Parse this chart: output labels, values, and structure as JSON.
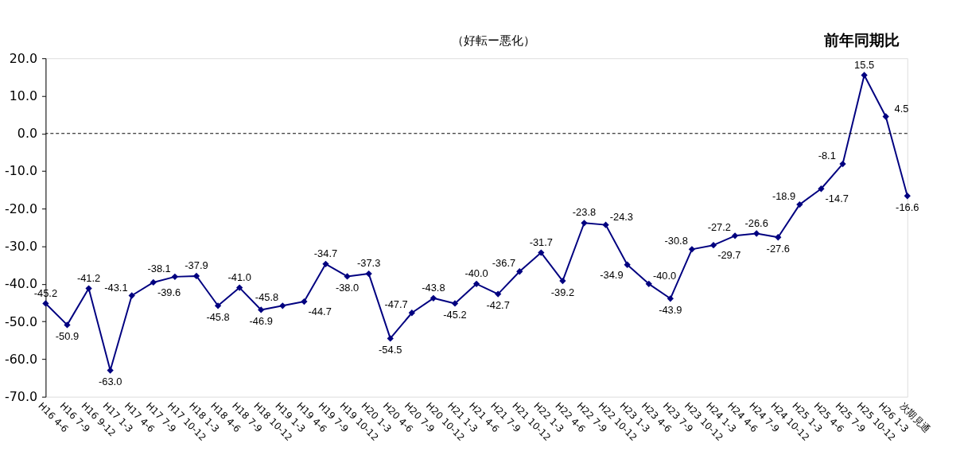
{
  "chart_data": {
    "type": "line",
    "title": "前年同期比",
    "subtitle": "（好転ー悪化）",
    "categories": [
      "H16 4-6",
      "H16 7-9",
      "H16 9-12",
      "H17 1-3",
      "H17 4-6",
      "H17 7-9",
      "H17 10-12",
      "H18 1-3",
      "H18 4-6",
      "H18 7-9",
      "H18 10-12",
      "H19 1-3",
      "H19 4-6",
      "H19 7-9",
      "H19 10-12",
      "H20 1-3",
      "H20 4-6",
      "H20 7-9",
      "H20 10-12",
      "H21 1-3",
      "H21 4-6",
      "H21 7-9",
      "H21 10-12",
      "H22 1-3",
      "H22 4-6",
      "H22 7-9",
      "H22 10-12",
      "H23 1-3",
      "H23 4-6",
      "H23 7-9",
      "H23 10-12",
      "H24 1-3",
      "H24 4-6",
      "H24 7-9",
      "H24 10-12",
      "H25 1-3",
      "H25 4-6",
      "H25 7-9",
      "H25 10-12",
      "H26 1-3",
      "次期見通"
    ],
    "series": [
      {
        "color": "#000080",
        "values": [
          -45.2,
          -50.9,
          -41.2,
          -63.0,
          -43.1,
          -39.6,
          -38.1,
          -37.9,
          -45.8,
          -41.0,
          -46.9,
          -45.8,
          -44.7,
          -34.7,
          -38.0,
          -37.3,
          -54.5,
          -47.7,
          -43.8,
          -45.2,
          -40.0,
          -42.7,
          -36.7,
          -31.7,
          -39.2,
          -23.8,
          -24.3,
          -34.9,
          -40.0,
          -43.9,
          -30.8,
          -29.7,
          -27.2,
          -26.6,
          -27.6,
          -18.9,
          -14.7,
          -8.1,
          15.5,
          4.5,
          -16.6
        ],
        "value_labels": [
          "-45.2",
          "-50.9",
          "-41.2",
          "-63.0",
          "-43.1",
          "-39.6",
          "-38.1",
          "-37.9",
          "-45.8",
          "-41.0",
          "-46.9",
          "-45.8",
          "-44.7",
          "-34.7",
          "-38.0",
          "-37.3",
          "-54.5",
          "-47.7",
          "-43.8",
          "-45.2",
          "-40.0",
          "-42.7",
          "-36.7",
          "-31.7",
          "-39.2",
          "-23.8",
          "-24.3",
          "-34.9",
          "-40.0",
          "-43.9",
          "-30.8",
          "-29.7",
          "-27.2",
          "-26.6",
          "-27.6",
          "-18.9",
          "-14.7",
          "-8.1",
          "15.5",
          "4.5",
          "-16.6"
        ]
      }
    ],
    "ylim": [
      -70,
      20
    ],
    "yticks": [
      {
        "value": -70,
        "label": "-70.0"
      },
      {
        "value": -60,
        "label": "-60.0"
      },
      {
        "value": -50,
        "label": "-50.0"
      },
      {
        "value": -40,
        "label": "-40.0"
      },
      {
        "value": -30,
        "label": "-30.0"
      },
      {
        "value": -20,
        "label": "-20.0"
      },
      {
        "value": -10,
        "label": "-10.0"
      },
      {
        "value": 0,
        "label": "0.0"
      },
      {
        "value": 10,
        "label": "10.0"
      },
      {
        "value": 20,
        "label": "20.0"
      }
    ],
    "ref_lines": [
      {
        "axis": "y",
        "value": 0,
        "color": "#000000",
        "line_style": "dashed"
      }
    ],
    "marker": "diamond",
    "line_style": "solid",
    "grid": false
  }
}
